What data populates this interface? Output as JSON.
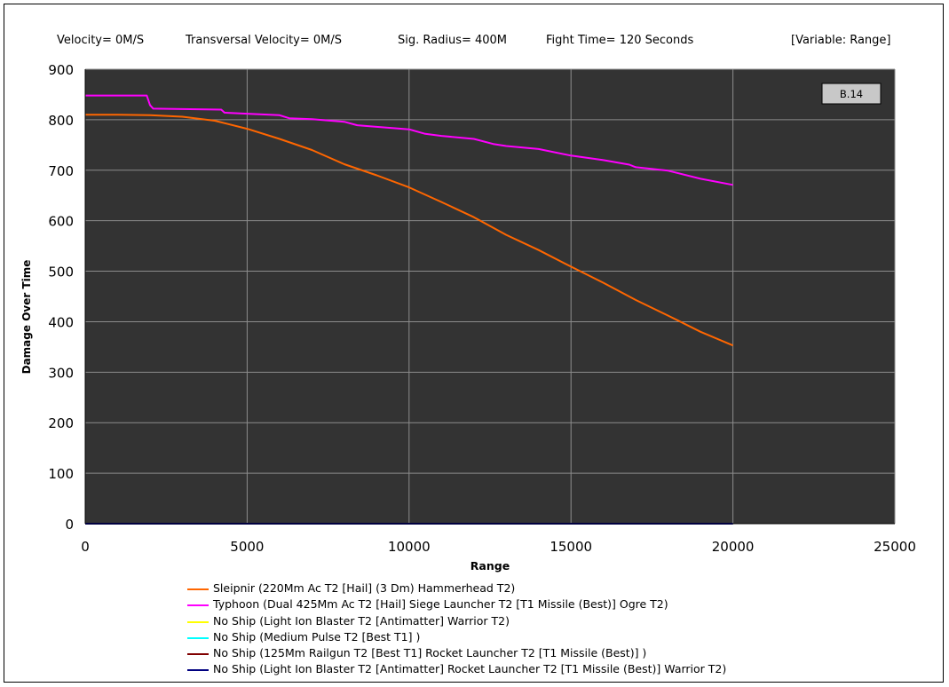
{
  "header": {
    "velocity": "Velocity= 0M/S",
    "transversal": "Transversal Velocity= 0M/S",
    "sig_radius": "Sig. Radius= 400M",
    "fight_time": "Fight Time= 120 Seconds",
    "variable": "[Variable: Range]"
  },
  "colors": {
    "plot_bg": "#333333",
    "grid": "#8c8c8c",
    "series": [
      "#ff6600",
      "#ff00ff",
      "#ffff00",
      "#00ffff",
      "#800000",
      "#000080"
    ]
  },
  "chart_data": {
    "type": "line",
    "title": "",
    "xlabel": "Range",
    "ylabel": "Damage Over Time",
    "xlim": [
      0,
      25000
    ],
    "ylim": [
      0,
      900
    ],
    "xticks": [
      "0",
      "5000",
      "10000",
      "15000",
      "20000",
      "25000"
    ],
    "yticks": [
      "0",
      "100",
      "200",
      "300",
      "400",
      "500",
      "600",
      "700",
      "800",
      "900"
    ],
    "grid": true,
    "legend_position": "bottom",
    "badge": "B.14",
    "series": [
      {
        "name": "Sleipnir (220Mm Ac T2 [Hail] (3 Dm) Hammerhead T2)",
        "points": [
          [
            0,
            810
          ],
          [
            1000,
            810
          ],
          [
            2000,
            809
          ],
          [
            3000,
            806
          ],
          [
            4000,
            798
          ],
          [
            5000,
            782
          ],
          [
            6000,
            762
          ],
          [
            7000,
            740
          ],
          [
            8000,
            712
          ],
          [
            9000,
            690
          ],
          [
            10000,
            666
          ],
          [
            11000,
            637
          ],
          [
            12000,
            607
          ],
          [
            13000,
            572
          ],
          [
            14000,
            542
          ],
          [
            15000,
            509
          ],
          [
            16000,
            477
          ],
          [
            17000,
            443
          ],
          [
            18000,
            412
          ],
          [
            19000,
            380
          ],
          [
            20000,
            353
          ]
        ]
      },
      {
        "name": "Typhoon (Dual 425Mm Ac T2 [Hail] Siege Launcher T2 [T1 Missile (Best)] Ogre T2)",
        "points": [
          [
            0,
            848
          ],
          [
            1900,
            848
          ],
          [
            2000,
            829
          ],
          [
            2100,
            822
          ],
          [
            3000,
            821
          ],
          [
            4200,
            820
          ],
          [
            4300,
            814
          ],
          [
            5000,
            812
          ],
          [
            6000,
            809
          ],
          [
            6300,
            803
          ],
          [
            7000,
            801
          ],
          [
            8000,
            796
          ],
          [
            8400,
            789
          ],
          [
            9000,
            786
          ],
          [
            10000,
            781
          ],
          [
            10500,
            772
          ],
          [
            11000,
            768
          ],
          [
            12000,
            762
          ],
          [
            12600,
            752
          ],
          [
            13000,
            748
          ],
          [
            14000,
            742
          ],
          [
            15000,
            729
          ],
          [
            16000,
            720
          ],
          [
            16800,
            711
          ],
          [
            17000,
            706
          ],
          [
            18000,
            699
          ],
          [
            19000,
            683
          ],
          [
            20000,
            671
          ]
        ]
      },
      {
        "name": "No Ship (Light Ion Blaster T2 [Antimatter] Warrior T2)",
        "points": [
          [
            0,
            0
          ],
          [
            20000,
            0
          ]
        ]
      },
      {
        "name": "No Ship (Medium Pulse T2 [Best T1] )",
        "points": [
          [
            0,
            0
          ],
          [
            20000,
            0
          ]
        ]
      },
      {
        "name": "No Ship (125Mm Railgun T2 [Best T1] Rocket Launcher T2 [T1 Missile (Best)] )",
        "points": [
          [
            0,
            0
          ],
          [
            20000,
            0
          ]
        ]
      },
      {
        "name": "No Ship (Light Ion Blaster T2 [Antimatter] Rocket Launcher T2 [T1 Missile (Best)] Warrior T2)",
        "points": [
          [
            0,
            0
          ],
          [
            20000,
            0
          ]
        ]
      }
    ]
  }
}
